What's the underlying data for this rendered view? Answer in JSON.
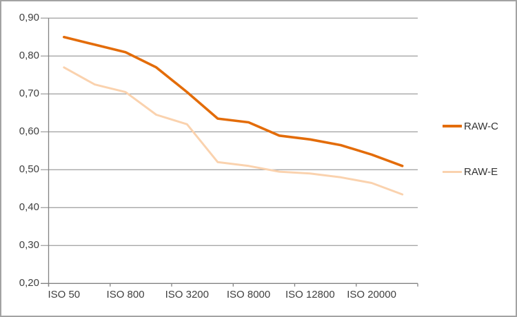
{
  "frame": {
    "background": "#FFFFFF",
    "border_color": "#A3A3A3"
  },
  "chart_data": {
    "type": "line",
    "title": "",
    "num_categories": 12,
    "x_tick_labels": [
      "ISO 50",
      "ISO 800",
      "ISO 3200",
      "ISO 8000",
      "ISO 12800",
      "ISO 20000"
    ],
    "x_label_band_indices": [
      0,
      2,
      4,
      6,
      8,
      10
    ],
    "y_ticks": [
      "0,90",
      "0,80",
      "0,70",
      "0,60",
      "0,50",
      "0,40",
      "0,30",
      "0,20"
    ],
    "y_tick_values": [
      0.9,
      0.8,
      0.7,
      0.6,
      0.5,
      0.4,
      0.3,
      0.2
    ],
    "ylim": [
      0.2,
      0.9
    ],
    "grid": "horizontal",
    "legend_position": "right",
    "gridline_color": "#A6A6A6",
    "axis_color": "#828282",
    "label_color": "#3F3F3F",
    "series": [
      {
        "name": "RAW-C",
        "color": "#E36C09",
        "stroke_width": 3.6,
        "values": [
          0.85,
          0.83,
          0.81,
          0.77,
          0.705,
          0.635,
          0.625,
          0.59,
          0.58,
          0.565,
          0.54,
          0.51
        ]
      },
      {
        "name": "RAW-E",
        "color": "#FAD2AE",
        "stroke_width": 3.0,
        "values": [
          0.77,
          0.725,
          0.705,
          0.645,
          0.62,
          0.52,
          0.51,
          0.495,
          0.49,
          0.48,
          0.465,
          0.435
        ]
      }
    ]
  }
}
